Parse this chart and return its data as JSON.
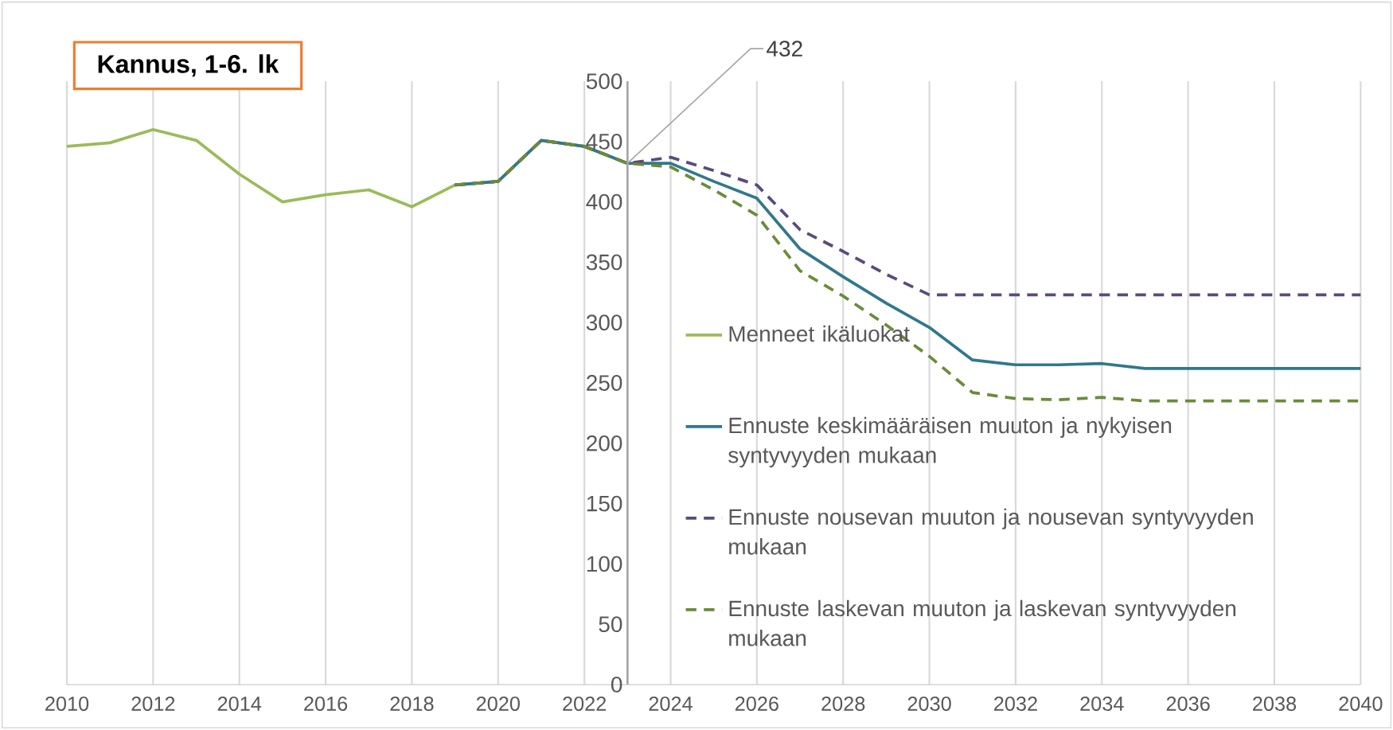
{
  "chart_data": {
    "type": "line",
    "title": "Kannus, 1-6. lk",
    "xlim": [
      2010,
      2040
    ],
    "xticks": [
      2010,
      2012,
      2014,
      2016,
      2018,
      2020,
      2022,
      2024,
      2026,
      2028,
      2030,
      2032,
      2034,
      2036,
      2038,
      2040
    ],
    "ylim": [
      0,
      500
    ],
    "yticks": [
      0,
      50,
      100,
      150,
      200,
      250,
      300,
      350,
      400,
      450,
      500
    ],
    "grid": true,
    "legend": "right",
    "marker": "none",
    "annotations": [
      {
        "text": "432",
        "x": 2023,
        "y": 432
      }
    ],
    "series": [
      {
        "name": "Menneet ikäluokat",
        "color": "#9bbb59",
        "line_style": "solid",
        "x": [
          2010,
          2011,
          2012,
          2013,
          2014,
          2015,
          2016,
          2017,
          2018,
          2019,
          2020,
          2021,
          2022,
          2023
        ],
        "values": [
          446,
          449,
          460,
          451,
          423,
          400,
          406,
          410,
          396,
          414,
          417,
          451,
          446,
          432
        ]
      },
      {
        "name": "Ennuste keskimääräisen muuton ja nykyisen syntyvyyden mukaan",
        "color": "#31788c",
        "line_style": "solid",
        "x": [
          2019,
          2020,
          2021,
          2022,
          2023,
          2024,
          2025,
          2026,
          2027,
          2028,
          2029,
          2030,
          2031,
          2032,
          2033,
          2034,
          2035,
          2036,
          2037,
          2038,
          2039,
          2040
        ],
        "values": [
          414,
          417,
          451,
          446,
          432,
          432,
          417,
          403,
          361,
          338,
          316,
          296,
          269,
          265,
          265,
          266,
          262,
          262,
          262,
          262,
          262,
          262
        ]
      },
      {
        "name": "Ennuste nousevan muuton ja nousevan syntyvyyden mukaan",
        "color": "#5b4a7c",
        "line_style": "dashed",
        "x": [
          2019,
          2020,
          2021,
          2022,
          2023,
          2024,
          2025,
          2026,
          2027,
          2028,
          2029,
          2030,
          2031,
          2032,
          2033,
          2034,
          2035,
          2036,
          2037,
          2038,
          2039,
          2040
        ],
        "values": [
          414,
          417,
          451,
          446,
          432,
          437,
          426,
          414,
          377,
          359,
          340,
          323,
          323,
          323,
          323,
          323,
          323,
          323,
          323,
          323,
          323,
          323
        ]
      },
      {
        "name": "Ennuste laskevan muuton ja laskevan syntyvyyden mukaan",
        "color": "#6b8b3a",
        "line_style": "dashed",
        "x": [
          2019,
          2020,
          2021,
          2022,
          2023,
          2024,
          2025,
          2026,
          2027,
          2028,
          2029,
          2030,
          2031,
          2032,
          2033,
          2034,
          2035,
          2036,
          2037,
          2038,
          2039,
          2040
        ],
        "values": [
          414,
          417,
          451,
          446,
          432,
          429,
          410,
          389,
          343,
          322,
          298,
          272,
          242,
          237,
          236,
          238,
          235,
          235,
          235,
          235,
          235,
          235
        ]
      }
    ]
  }
}
